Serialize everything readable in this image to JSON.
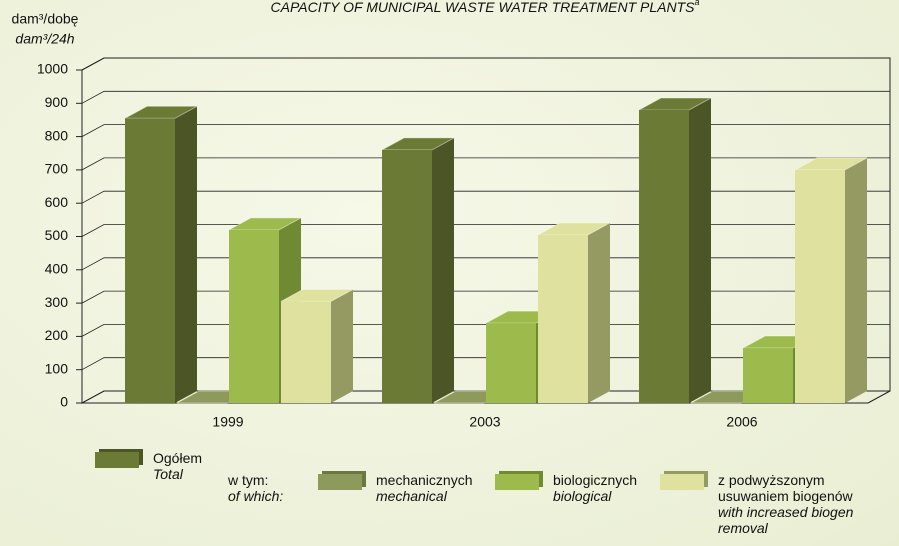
{
  "chart_data": {
    "type": "bar3d",
    "title": "CAPACITY OF MUNICIPAL WASTE WATER TREATMENT PLANTS",
    "title_note": "a",
    "y_label": [
      "dam³/dobę",
      "dam³/24h"
    ],
    "categories": [
      "1999",
      "2003",
      "2006"
    ],
    "series": [
      {
        "name": "Ogółem",
        "name_en": "Total",
        "color": "#6b7a35",
        "side": "#4b5526",
        "values": [
          855,
          760,
          880
        ]
      },
      {
        "name": "mechanicznych",
        "name_en": "mechanical",
        "color": "#8e9a5c",
        "side": "#6d7745",
        "values": [
          0,
          0,
          0
        ]
      },
      {
        "name": "biologicznych",
        "name_en": "biological",
        "color": "#9dbb4c",
        "side": "#6f8a32",
        "values": [
          520,
          240,
          165
        ]
      },
      {
        "name": "z podwyższonym usuwaniem biogenów",
        "name_en": "with increased biogen removal",
        "color": "#dfe29e",
        "side": "#949a62",
        "values": [
          305,
          505,
          700
        ]
      }
    ],
    "legend_group": [
      "w tym:",
      "of which:"
    ],
    "ylim": [
      0,
      1000
    ],
    "yticks": [
      0,
      100,
      200,
      300,
      400,
      500,
      600,
      700,
      800,
      900,
      1000
    ],
    "grid": true
  }
}
